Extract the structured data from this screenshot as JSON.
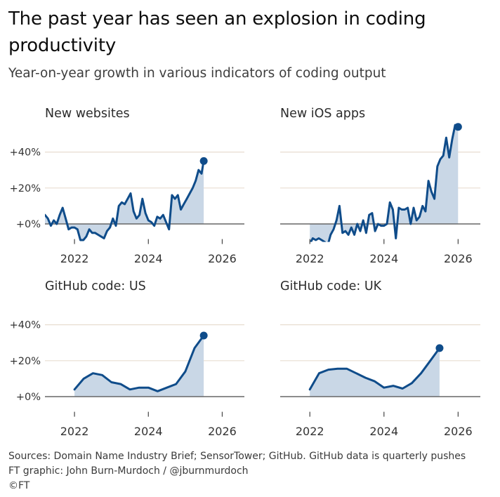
{
  "title": "The past year has seen an explosion in coding productivity",
  "subtitle": "Year-on-year growth in various indicators of coding output",
  "footer": {
    "sources": "Sources: Domain Name Industry Brief; SensorTower; GitHub. GitHub data is quarterly pushes",
    "credit": "FT graphic: John Burn-Murdoch / @jburnmurdoch",
    "copyright": "©FT"
  },
  "colors": {
    "line": "#0f4c8a",
    "fill": "#c9d7e6",
    "grid": "#e8ddd0",
    "zero": "#666666",
    "text": "#333333"
  },
  "chart_data": [
    {
      "type": "area",
      "title": "New websites",
      "xlim": [
        2021.2,
        2026.6
      ],
      "ylim": [
        -10,
        46
      ],
      "yticks": [
        0,
        20,
        40
      ],
      "ytick_labels": [
        "+0%",
        "+20%",
        "+40%"
      ],
      "xticks": [
        2022,
        2024,
        2026
      ],
      "xtick_labels": [
        "2022",
        "2024",
        "2026"
      ],
      "x": [
        2021.2,
        2021.28,
        2021.36,
        2021.44,
        2021.52,
        2021.6,
        2021.68,
        2021.76,
        2021.84,
        2021.92,
        2022.0,
        2022.08,
        2022.16,
        2022.24,
        2022.32,
        2022.4,
        2022.48,
        2022.56,
        2022.64,
        2022.72,
        2022.8,
        2022.88,
        2022.96,
        2023.04,
        2023.12,
        2023.2,
        2023.28,
        2023.36,
        2023.44,
        2023.52,
        2023.6,
        2023.68,
        2023.76,
        2023.84,
        2023.92,
        2024.0,
        2024.08,
        2024.16,
        2024.24,
        2024.32,
        2024.4,
        2024.48,
        2024.56,
        2024.64,
        2024.72,
        2024.8,
        2024.88,
        2024.96,
        2025.04,
        2025.12,
        2025.2,
        2025.28,
        2025.36,
        2025.44,
        2025.5
      ],
      "values": [
        5,
        3,
        -1,
        2,
        0,
        5,
        9,
        3,
        -3,
        -2,
        -2,
        -3,
        -9,
        -9,
        -7,
        -3,
        -5,
        -5,
        -6,
        -7,
        -8,
        -4,
        -2,
        3,
        -1,
        10,
        12,
        11,
        14,
        17,
        7,
        3,
        5,
        14,
        6,
        2,
        1,
        -1,
        4,
        3,
        5,
        1,
        -3,
        16,
        14,
        16,
        8,
        11,
        14,
        17,
        20,
        24,
        30,
        28,
        35
      ],
      "end_marker": true
    },
    {
      "type": "area",
      "title": "New iOS apps",
      "xlim": [
        2021.2,
        2026.6
      ],
      "ylim": [
        -10,
        62
      ],
      "yticks": [
        0,
        20,
        40
      ],
      "xticks": [
        2022,
        2024,
        2026
      ],
      "xtick_labels": [
        "2022",
        "2024",
        "2026"
      ],
      "x": [
        2022.0,
        2022.08,
        2022.16,
        2022.24,
        2022.32,
        2022.4,
        2022.48,
        2022.56,
        2022.64,
        2022.72,
        2022.8,
        2022.88,
        2022.96,
        2023.04,
        2023.12,
        2023.2,
        2023.28,
        2023.36,
        2023.44,
        2023.52,
        2023.6,
        2023.68,
        2023.76,
        2023.84,
        2023.92,
        2024.0,
        2024.08,
        2024.16,
        2024.24,
        2024.32,
        2024.4,
        2024.48,
        2024.56,
        2024.64,
        2024.72,
        2024.8,
        2024.88,
        2024.96,
        2025.04,
        2025.12,
        2025.2,
        2025.28,
        2025.36,
        2025.44,
        2025.52,
        2025.6,
        2025.68,
        2025.76,
        2025.84,
        2025.92,
        2026.0
      ],
      "values": [
        -11,
        -8,
        -9,
        -8,
        -9,
        -10,
        -12,
        -6,
        -3,
        2,
        10,
        -5,
        -4,
        -6,
        -2,
        -6,
        0,
        -4,
        2,
        -5,
        5,
        6,
        -4,
        0,
        -1,
        -1,
        0,
        12,
        8,
        -8,
        9,
        8,
        8,
        9,
        0,
        9,
        2,
        4,
        10,
        7,
        24,
        18,
        14,
        32,
        36,
        38,
        48,
        37,
        47,
        55,
        54
      ],
      "end_marker": true
    },
    {
      "type": "area",
      "title": "GitHub code: US",
      "xlim": [
        2021.2,
        2026.6
      ],
      "ylim": [
        -10,
        46
      ],
      "yticks": [
        0,
        20,
        40
      ],
      "ytick_labels": [
        "+0%",
        "+20%",
        "+40%"
      ],
      "xticks": [
        2022,
        2024,
        2026
      ],
      "xtick_labels": [
        "2022",
        "2024",
        "2026"
      ],
      "x": [
        2022.0,
        2022.25,
        2022.5,
        2022.75,
        2023.0,
        2023.25,
        2023.5,
        2023.75,
        2024.0,
        2024.25,
        2024.5,
        2024.75,
        2025.0,
        2025.25,
        2025.5
      ],
      "values": [
        4,
        10,
        13,
        12,
        8,
        7,
        4,
        5,
        5,
        3,
        5,
        7,
        14,
        27,
        34
      ],
      "end_marker": true
    },
    {
      "type": "area",
      "title": "GitHub code: UK",
      "xlim": [
        2021.2,
        2026.6
      ],
      "ylim": [
        -10,
        46
      ],
      "yticks": [
        0,
        20,
        40
      ],
      "xticks": [
        2022,
        2024,
        2026
      ],
      "xtick_labels": [
        "2022",
        "2024",
        "2026"
      ],
      "x": [
        2022.0,
        2022.25,
        2022.5,
        2022.75,
        2023.0,
        2023.25,
        2023.5,
        2023.75,
        2024.0,
        2024.25,
        2024.5,
        2024.75,
        2025.0,
        2025.25,
        2025.5
      ],
      "values": [
        4,
        13,
        15,
        15.5,
        15.5,
        13,
        10.5,
        8.5,
        5,
        6,
        4.5,
        7.5,
        13,
        20,
        27
      ],
      "end_marker": true
    }
  ]
}
